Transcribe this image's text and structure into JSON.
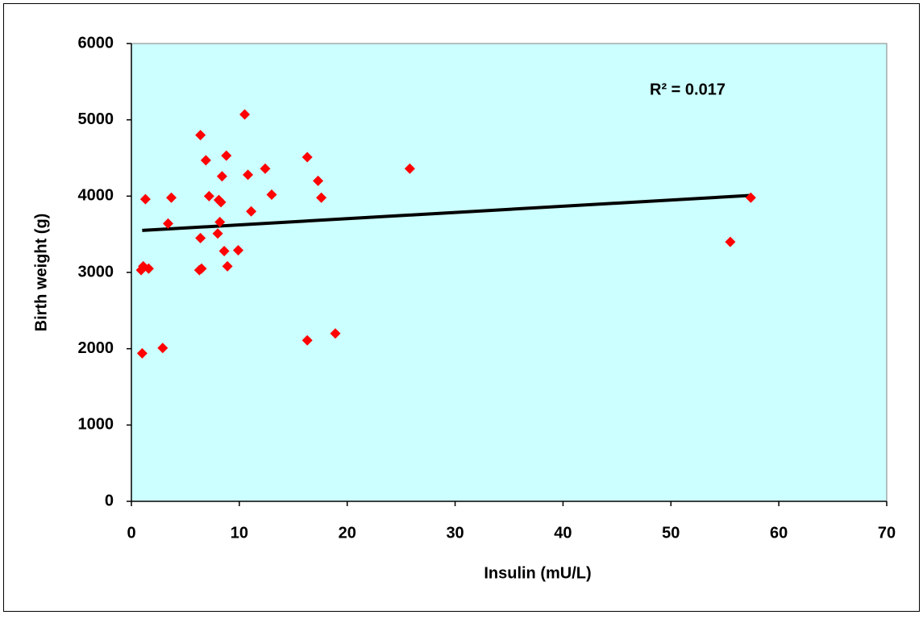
{
  "chart_data": {
    "type": "scatter",
    "xlabel": "Insulin (mU/L)",
    "ylabel": "Birth weight (g)",
    "annotation": "R² = 0.017",
    "series": [
      {
        "name": "Birth weight",
        "color": "#ff0000",
        "x": [
          1.0,
          1.1,
          0.9,
          1.6,
          1.3,
          2.9,
          3.4,
          3.7,
          6.4,
          6.9,
          7.2,
          6.4,
          6.3,
          6.5,
          8.0,
          8.2,
          8.1,
          8.3,
          8.4,
          8.8,
          8.6,
          8.9,
          9.9,
          10.5,
          10.8,
          11.1,
          12.4,
          13.0,
          16.3,
          17.3,
          17.6,
          16.3,
          18.9,
          25.8,
          55.5,
          57.4
        ],
        "values": [
          1940,
          3080,
          3030,
          3050,
          3960,
          2010,
          3640,
          3980,
          4800,
          4470,
          4000,
          3450,
          3030,
          3050,
          3510,
          3660,
          3950,
          3920,
          4260,
          4530,
          3280,
          3080,
          3290,
          5070,
          4280,
          3800,
          4360,
          4020,
          4510,
          4200,
          3980,
          2110,
          2200,
          4360,
          3400,
          3980
        ]
      }
    ],
    "trendline": {
      "color": "#000000",
      "x": [
        1.0,
        57.5
      ],
      "values": [
        3550,
        4010
      ]
    },
    "plot_background": "#ccffff",
    "xlim": [
      0,
      70
    ],
    "xticks": [
      0,
      10,
      20,
      30,
      40,
      50,
      60,
      70
    ],
    "ylim": [
      0,
      6000
    ],
    "yticks": [
      0,
      1000,
      2000,
      3000,
      4000,
      5000,
      6000
    ]
  }
}
